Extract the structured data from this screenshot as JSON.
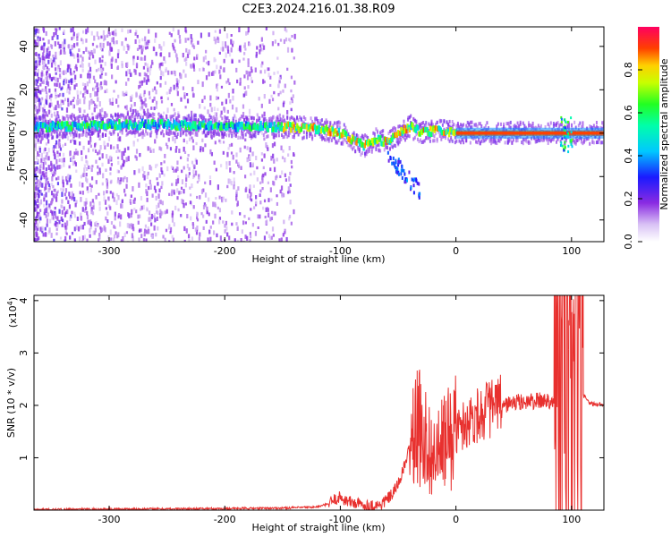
{
  "title": "C2E3.2024.216.01.38.R09",
  "chart_data": [
    {
      "type": "heatmap",
      "xlabel": "Height of straight line (km)",
      "ylabel": "Frequency (Hz)",
      "xlim": [
        -365,
        128
      ],
      "ylim": [
        -50,
        49
      ],
      "x_ticks": [
        -300,
        -200,
        -100,
        0,
        100
      ],
      "y_ticks": [
        -40,
        -20,
        0,
        20,
        40
      ],
      "colorbar": {
        "label": "Normalized spectral amplitude",
        "range": [
          0,
          1
        ],
        "ticks": [
          0.0,
          0.2,
          0.4,
          0.6,
          0.8
        ]
      },
      "ridge_trace": [
        {
          "x": -365,
          "y": 3
        },
        {
          "x": -340,
          "y": 3
        },
        {
          "x": -300,
          "y": 4
        },
        {
          "x": -250,
          "y": 4
        },
        {
          "x": -200,
          "y": 3
        },
        {
          "x": -150,
          "y": 3
        },
        {
          "x": -120,
          "y": 2
        },
        {
          "x": -100,
          "y": 0
        },
        {
          "x": -90,
          "y": -3
        },
        {
          "x": -80,
          "y": -6
        },
        {
          "x": -70,
          "y": -3
        },
        {
          "x": -60,
          "y": -4
        },
        {
          "x": -50,
          "y": 0
        },
        {
          "x": -40,
          "y": 3
        },
        {
          "x": -30,
          "y": 0
        },
        {
          "x": -20,
          "y": 1
        },
        {
          "x": -10,
          "y": 1
        },
        {
          "x": 0,
          "y": 0
        },
        {
          "x": 20,
          "y": 0
        },
        {
          "x": 60,
          "y": 0
        },
        {
          "x": 100,
          "y": 0
        },
        {
          "x": 128,
          "y": 0
        }
      ]
    },
    {
      "type": "line",
      "xlabel": "Height of straight line (km)",
      "ylabel": "SNR (10 * v/v)",
      "y_multiplier_label": "(x10",
      "y_multiplier_exp": "4",
      "y_multiplier_close": ")",
      "xlim": [
        -365,
        128
      ],
      "ylim": [
        0,
        4.1
      ],
      "x_ticks": [
        -300,
        -200,
        -100,
        0,
        100
      ],
      "y_ticks": [
        1,
        2,
        3,
        4
      ],
      "color": "#e8302e",
      "series": [
        {
          "x": [
            -365,
            -300,
            -200,
            -150,
            -120,
            -110,
            -105,
            -100,
            -95,
            -85,
            -75,
            -65,
            -55,
            -50,
            -45,
            -40,
            -35,
            -30,
            -25,
            -20,
            -15,
            -10,
            -5,
            0,
            10,
            20,
            30,
            40,
            50,
            60,
            70,
            80,
            85,
            90,
            95,
            98,
            100,
            103,
            106,
            110,
            115,
            120,
            128
          ],
          "y": [
            0.01,
            0.02,
            0.03,
            0.04,
            0.06,
            0.12,
            0.2,
            0.25,
            0.18,
            0.12,
            0.08,
            0.1,
            0.3,
            0.5,
            0.8,
            1.2,
            1.5,
            1.6,
            1.3,
            1.0,
            1.1,
            1.3,
            1.4,
            1.5,
            1.7,
            1.85,
            1.95,
            2.0,
            2.05,
            2.07,
            2.08,
            2.1,
            2.1,
            2.15,
            2.3,
            3.2,
            2.0,
            3.8,
            2.6,
            2.2,
            2.05,
            2.02,
            2.02
          ]
        }
      ]
    }
  ]
}
